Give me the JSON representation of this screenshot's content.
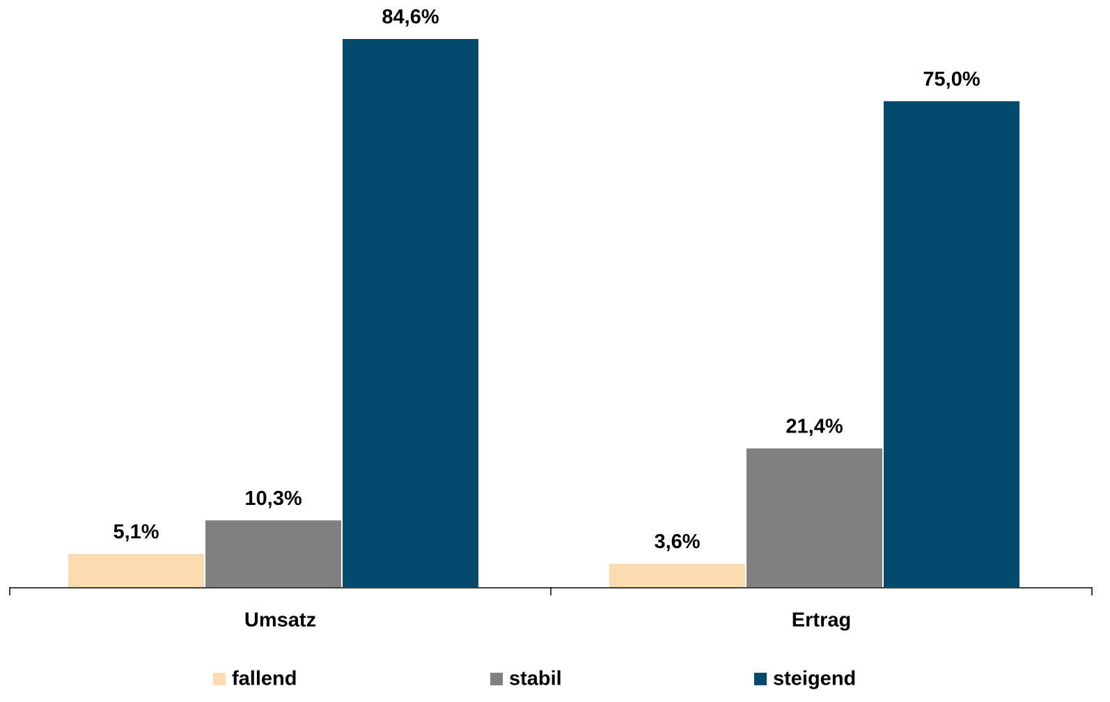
{
  "chart_data": {
    "type": "bar",
    "categories": [
      "Umsatz",
      "Ertrag"
    ],
    "series": [
      {
        "name": "fallend",
        "color": "#fddbb0",
        "values": [
          5.1,
          3.6
        ],
        "value_labels": [
          "5,1%",
          "3,6%"
        ]
      },
      {
        "name": "stabil",
        "color": "#808080",
        "values": [
          10.3,
          21.4
        ],
        "value_labels": [
          "10,3%",
          "21,4%"
        ]
      },
      {
        "name": "steigend",
        "color": "#034a6e",
        "values": [
          84.6,
          75.0
        ],
        "value_labels": [
          "84,6%",
          "75,0%"
        ]
      }
    ],
    "legend": "bottom"
  }
}
